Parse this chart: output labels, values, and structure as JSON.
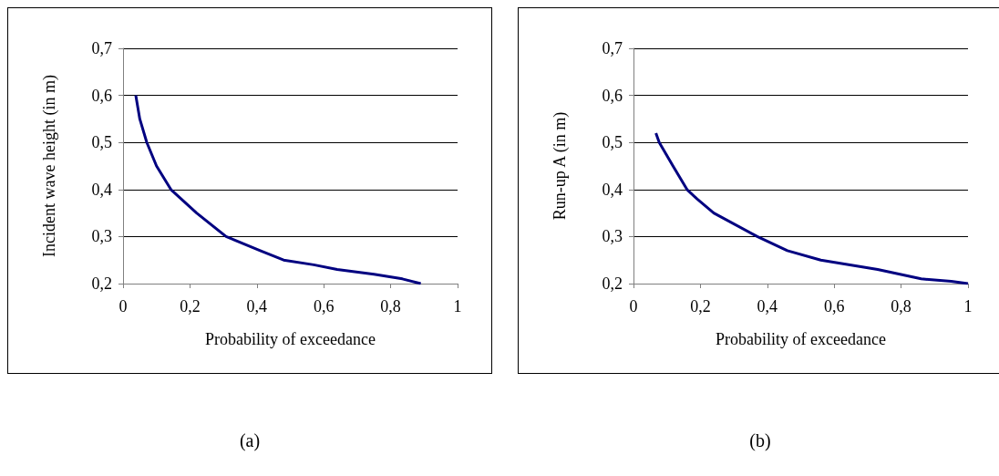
{
  "chart_data": [
    {
      "type": "line",
      "xlabel": "Probability of exceedance",
      "ylabel": "Incident wave height (in m)",
      "annotations": [
        "(a)"
      ],
      "xlim": [
        0,
        1
      ],
      "ylim": [
        0.2,
        0.7
      ],
      "xticks": [
        {
          "value": 0,
          "label": "0"
        },
        {
          "value": 0.2,
          "label": "0,2"
        },
        {
          "value": 0.4,
          "label": "0,4"
        },
        {
          "value": 0.6,
          "label": "0,6"
        },
        {
          "value": 0.8,
          "label": "0,8"
        },
        {
          "value": 1,
          "label": "1"
        }
      ],
      "yticks": [
        {
          "value": 0.2,
          "label": "0,2"
        },
        {
          "value": 0.3,
          "label": "0,3"
        },
        {
          "value": 0.4,
          "label": "0,4"
        },
        {
          "value": 0.5,
          "label": "0,5"
        },
        {
          "value": 0.6,
          "label": "0,6"
        },
        {
          "value": 0.7,
          "label": "0,7"
        }
      ],
      "grid": "y",
      "marker": "none",
      "line_style": "solid",
      "series": [
        {
          "color": "#000080",
          "x": [
            0.038,
            0.05,
            0.071,
            0.1,
            0.143,
            0.22,
            0.308,
            0.41,
            0.48,
            0.57,
            0.64,
            0.75,
            0.835,
            0.89
          ],
          "values": [
            0.6,
            0.55,
            0.5,
            0.45,
            0.4,
            0.35,
            0.3,
            0.27,
            0.25,
            0.24,
            0.23,
            0.22,
            0.21,
            0.2
          ]
        }
      ]
    },
    {
      "type": "line",
      "xlabel": "Probability of exceedance",
      "ylabel": "Run-up A (in m)",
      "annotations": [
        "(b)"
      ],
      "xlim": [
        0,
        1
      ],
      "ylim": [
        0.2,
        0.7
      ],
      "xticks": [
        {
          "value": 0,
          "label": "0"
        },
        {
          "value": 0.2,
          "label": "0,2"
        },
        {
          "value": 0.4,
          "label": "0,4"
        },
        {
          "value": 0.6,
          "label": "0,6"
        },
        {
          "value": 0.8,
          "label": "0,8"
        },
        {
          "value": 1,
          "label": "1"
        }
      ],
      "yticks": [
        {
          "value": 0.2,
          "label": "0,2"
        },
        {
          "value": 0.3,
          "label": "0,3"
        },
        {
          "value": 0.4,
          "label": "0,4"
        },
        {
          "value": 0.5,
          "label": "0,5"
        },
        {
          "value": 0.6,
          "label": "0,6"
        },
        {
          "value": 0.7,
          "label": "0,7"
        }
      ],
      "grid": "y",
      "marker": "none",
      "line_style": "solid",
      "series": [
        {
          "color": "#000080",
          "x": [
            0.067,
            0.077,
            0.118,
            0.16,
            0.19,
            0.24,
            0.37,
            0.46,
            0.56,
            0.73,
            0.86,
            0.95,
            1.0
          ],
          "values": [
            0.52,
            0.5,
            0.45,
            0.4,
            0.38,
            0.35,
            0.3,
            0.27,
            0.25,
            0.23,
            0.21,
            0.205,
            0.2
          ]
        }
      ]
    }
  ]
}
